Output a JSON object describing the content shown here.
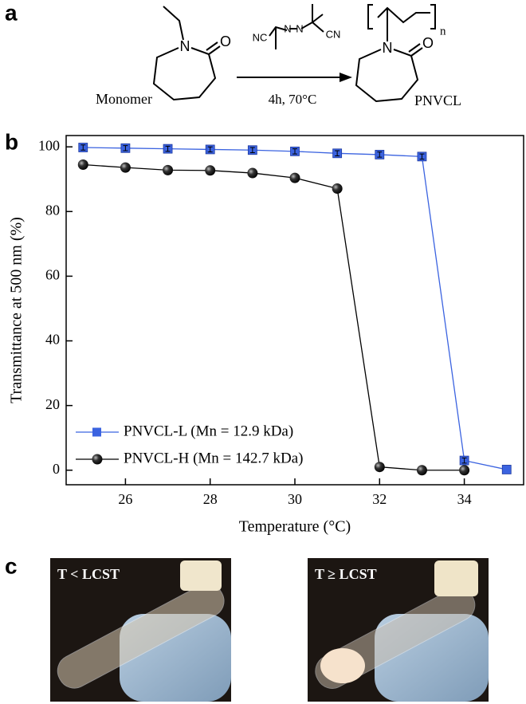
{
  "scheme": {
    "panel_label": "a",
    "monomer_label": "Monomer",
    "monomer_atoms": [
      "N",
      "O"
    ],
    "initiator_atoms": [
      "NC",
      "N",
      "N",
      "CN"
    ],
    "conditions": "4h, 70°C",
    "product_label": "PNVCL",
    "product_atoms": [
      "N",
      "O"
    ],
    "repeat_unit": "n"
  },
  "chart_data": {
    "type": "line",
    "panel_label": "b",
    "x_label": "Temperature (°C)",
    "y_label": "Transmittance at 500 nm (%)",
    "xlim": [
      24.6,
      35.4
    ],
    "ylim": [
      -4.5,
      103.5
    ],
    "xticks": [
      26,
      28,
      30,
      32,
      34
    ],
    "yticks": [
      0,
      20,
      40,
      60,
      80,
      100
    ],
    "legend": "lower left",
    "series": [
      {
        "name": "PNVCL-L (Mn = 12.9 kDa)",
        "color": "#3b63e0",
        "marker": "square",
        "x": [
          25,
          26,
          27,
          28,
          29,
          30,
          31,
          32,
          33,
          34,
          35
        ],
        "values": [
          99.8,
          99.6,
          99.4,
          99.2,
          99.0,
          98.6,
          98.0,
          97.6,
          97.0,
          3.0,
          0.2
        ],
        "errors": [
          0.8,
          0.8,
          0.8,
          0.8,
          0.8,
          0.8,
          0.8,
          0.8,
          0.8,
          0.8,
          null
        ]
      },
      {
        "name": "PNVCL-H (Mn = 142.7 kDa)",
        "color": "#000000",
        "marker": "sphere",
        "x": [
          25,
          26,
          27,
          28,
          29,
          30,
          31,
          32,
          33,
          34
        ],
        "values": [
          94.5,
          93.6,
          92.8,
          92.7,
          91.9,
          90.4,
          87.1,
          1.0,
          0.0,
          0.0
        ]
      }
    ]
  },
  "photos": {
    "panel_label": "c",
    "left_label": "T < LCST",
    "right_label": "T ≥ LCST"
  }
}
